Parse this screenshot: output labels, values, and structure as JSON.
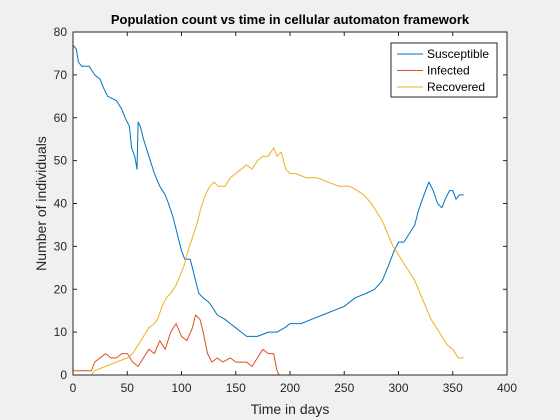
{
  "chart_data": {
    "type": "line",
    "title": "Population count vs time in cellular automaton framework",
    "xlabel": "Time in days",
    "ylabel": "Number of individuals",
    "xlim": [
      0,
      400
    ],
    "ylim": [
      0,
      80
    ],
    "xticks": [
      0,
      50,
      100,
      150,
      200,
      250,
      300,
      350,
      400
    ],
    "yticks": [
      0,
      10,
      20,
      30,
      40,
      50,
      60,
      70,
      80
    ],
    "grid": false,
    "legend_position": "top-right",
    "series": [
      {
        "name": "Susceptible",
        "color": "#0072bd",
        "points": [
          [
            0,
            77
          ],
          [
            3,
            76
          ],
          [
            5,
            73
          ],
          [
            8,
            72
          ],
          [
            15,
            72
          ],
          [
            20,
            70
          ],
          [
            25,
            69
          ],
          [
            28,
            67
          ],
          [
            32,
            65
          ],
          [
            40,
            64
          ],
          [
            45,
            62
          ],
          [
            48,
            60
          ],
          [
            52,
            58
          ],
          [
            54,
            53
          ],
          [
            57,
            51
          ],
          [
            59,
            48
          ],
          [
            60,
            59
          ],
          [
            62,
            58
          ],
          [
            65,
            55
          ],
          [
            70,
            51
          ],
          [
            75,
            47
          ],
          [
            80,
            44
          ],
          [
            85,
            42
          ],
          [
            88,
            40
          ],
          [
            92,
            37
          ],
          [
            95,
            34
          ],
          [
            98,
            31
          ],
          [
            100,
            29
          ],
          [
            103,
            27
          ],
          [
            108,
            27
          ],
          [
            110,
            25
          ],
          [
            113,
            22
          ],
          [
            116,
            19
          ],
          [
            120,
            18
          ],
          [
            125,
            17
          ],
          [
            128,
            16
          ],
          [
            133,
            14
          ],
          [
            140,
            13
          ],
          [
            145,
            12
          ],
          [
            150,
            11
          ],
          [
            155,
            10
          ],
          [
            160,
            9
          ],
          [
            170,
            9
          ],
          [
            180,
            10
          ],
          [
            188,
            10
          ],
          [
            195,
            11
          ],
          [
            200,
            12
          ],
          [
            210,
            12
          ],
          [
            220,
            13
          ],
          [
            230,
            14
          ],
          [
            240,
            15
          ],
          [
            250,
            16
          ],
          [
            260,
            18
          ],
          [
            270,
            19
          ],
          [
            278,
            20
          ],
          [
            285,
            22
          ],
          [
            290,
            25
          ],
          [
            293,
            27
          ],
          [
            296,
            29
          ],
          [
            300,
            31
          ],
          [
            305,
            31
          ],
          [
            310,
            33
          ],
          [
            315,
            35
          ],
          [
            318,
            38
          ],
          [
            322,
            41
          ],
          [
            325,
            43
          ],
          [
            328,
            45
          ],
          [
            332,
            43
          ],
          [
            336,
            40
          ],
          [
            340,
            39
          ],
          [
            343,
            41
          ],
          [
            347,
            43
          ],
          [
            350,
            43
          ],
          [
            353,
            41
          ],
          [
            356,
            42
          ],
          [
            360,
            42
          ]
        ]
      },
      {
        "name": "Infected",
        "color": "#d95319",
        "points": [
          [
            0,
            1
          ],
          [
            17,
            1
          ],
          [
            20,
            3
          ],
          [
            25,
            4
          ],
          [
            30,
            5
          ],
          [
            35,
            4
          ],
          [
            40,
            4
          ],
          [
            45,
            5
          ],
          [
            50,
            5
          ],
          [
            55,
            3
          ],
          [
            60,
            2
          ],
          [
            65,
            4
          ],
          [
            70,
            6
          ],
          [
            75,
            5
          ],
          [
            80,
            8
          ],
          [
            85,
            6
          ],
          [
            90,
            10
          ],
          [
            95,
            12
          ],
          [
            100,
            9
          ],
          [
            105,
            8
          ],
          [
            110,
            11
          ],
          [
            113,
            14
          ],
          [
            117,
            13
          ],
          [
            120,
            10
          ],
          [
            124,
            5
          ],
          [
            128,
            3
          ],
          [
            133,
            4
          ],
          [
            138,
            3
          ],
          [
            145,
            4
          ],
          [
            150,
            3
          ],
          [
            155,
            3
          ],
          [
            160,
            3
          ],
          [
            165,
            2
          ],
          [
            170,
            4
          ],
          [
            175,
            6
          ],
          [
            180,
            5
          ],
          [
            185,
            5
          ],
          [
            188,
            1
          ],
          [
            190,
            0
          ],
          [
            360,
            0
          ]
        ]
      },
      {
        "name": "Recovered",
        "color": "#edb120",
        "points": [
          [
            0,
            0
          ],
          [
            17,
            0
          ],
          [
            20,
            1
          ],
          [
            30,
            2
          ],
          [
            40,
            3
          ],
          [
            50,
            4
          ],
          [
            55,
            5
          ],
          [
            60,
            7
          ],
          [
            65,
            9
          ],
          [
            70,
            11
          ],
          [
            75,
            12
          ],
          [
            78,
            13
          ],
          [
            82,
            16
          ],
          [
            86,
            18
          ],
          [
            90,
            19
          ],
          [
            95,
            21
          ],
          [
            100,
            24
          ],
          [
            103,
            26
          ],
          [
            106,
            29
          ],
          [
            110,
            32
          ],
          [
            114,
            35
          ],
          [
            118,
            39
          ],
          [
            122,
            42
          ],
          [
            126,
            44
          ],
          [
            130,
            45
          ],
          [
            134,
            44
          ],
          [
            140,
            44
          ],
          [
            145,
            46
          ],
          [
            150,
            47
          ],
          [
            155,
            48
          ],
          [
            160,
            49
          ],
          [
            165,
            48
          ],
          [
            170,
            50
          ],
          [
            175,
            51
          ],
          [
            180,
            51
          ],
          [
            185,
            53
          ],
          [
            188,
            51
          ],
          [
            192,
            52
          ],
          [
            196,
            48
          ],
          [
            200,
            47
          ],
          [
            205,
            47
          ],
          [
            215,
            46
          ],
          [
            225,
            46
          ],
          [
            235,
            45
          ],
          [
            245,
            44
          ],
          [
            255,
            44
          ],
          [
            262,
            43
          ],
          [
            268,
            42
          ],
          [
            275,
            40
          ],
          [
            280,
            38
          ],
          [
            285,
            36
          ],
          [
            290,
            33
          ],
          [
            295,
            30
          ],
          [
            300,
            28
          ],
          [
            305,
            26
          ],
          [
            310,
            24
          ],
          [
            315,
            22
          ],
          [
            320,
            19
          ],
          [
            325,
            16
          ],
          [
            330,
            13
          ],
          [
            335,
            11
          ],
          [
            340,
            9
          ],
          [
            345,
            7
          ],
          [
            350,
            6
          ],
          [
            355,
            4
          ],
          [
            360,
            4
          ]
        ]
      }
    ]
  }
}
